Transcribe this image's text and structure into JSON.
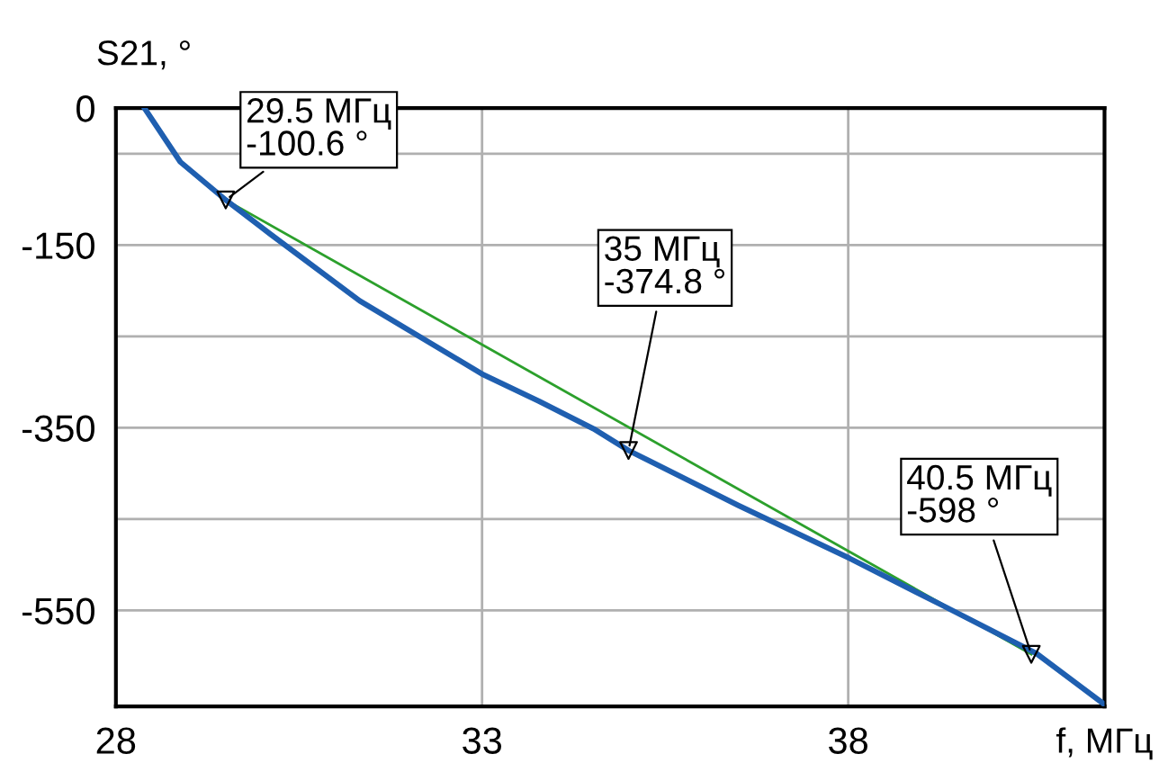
{
  "chart_data": {
    "type": "line",
    "xlabel": "f, МГц",
    "ylabel": "S21, °",
    "xlim": [
      28,
      41.5
    ],
    "xticks": [
      28,
      33,
      38
    ],
    "ylim": [
      -655,
      0
    ],
    "yticks": [
      0,
      {
        "value": -50,
        "label": null
      },
      -150,
      {
        "value": -250,
        "label": null
      },
      -350,
      {
        "value": -450,
        "label": null
      },
      -550
    ],
    "grid": true,
    "legend": false,
    "series": [
      {
        "color": "#1f5fb0",
        "x": [
          28.39,
          28.88,
          29.5,
          30.11,
          31.33,
          33.02,
          33.78,
          34.52,
          35,
          36.5,
          38.02,
          39.3,
          40.57,
          41.5
        ],
        "values": [
          0,
          -59,
          -100.6,
          -138,
          -211,
          -292,
          -321,
          -351,
          -374.8,
          -435,
          -493,
          -545,
          -597,
          -653
        ]
      },
      {
        "color": "#2ca02c",
        "x": [
          29.5,
          40.5
        ],
        "values": [
          -100.6,
          -598
        ]
      },
      {
        "type": "scatter",
        "marker": "triangle",
        "color": "#000000",
        "x": [
          29.5,
          35,
          40.5
        ],
        "values": [
          -100.6,
          -374.8,
          -598
        ]
      }
    ],
    "annotations": [
      {
        "text": "29.5 МГц\n-100.6 °",
        "x": 29.5,
        "y": -100.6
      },
      {
        "text": "35 МГц\n-374.8 °",
        "x": 35,
        "y": -374.8
      },
      {
        "text": "40.5 МГц\n-598 °",
        "x": 40.5,
        "y": -598
      }
    ]
  }
}
